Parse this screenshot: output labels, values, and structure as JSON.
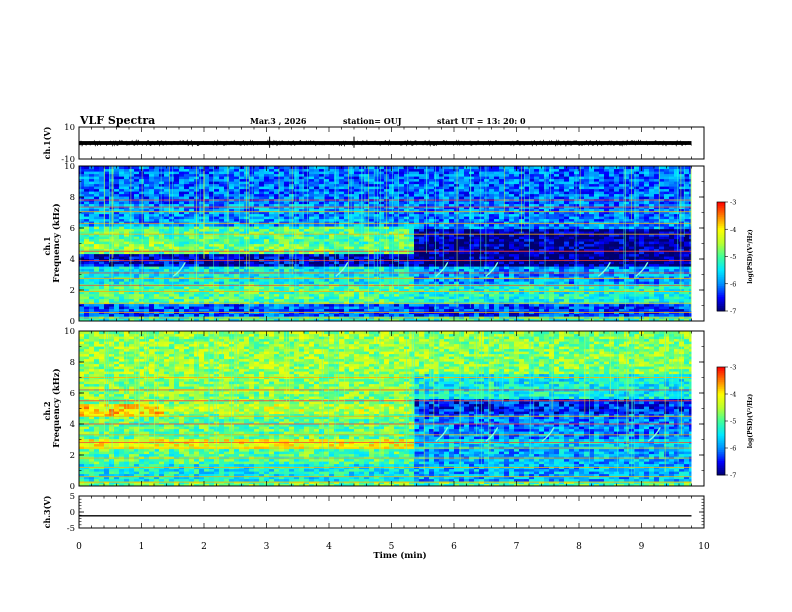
{
  "header": {
    "title": "VLF Spectra",
    "date": "Mar.3  , 2026",
    "station": "station= OUJ",
    "start": "start  UT  =   13: 20: 0"
  },
  "colors": {
    "cmap": [
      "#00006e",
      "#0000ff",
      "#0090ff",
      "#00e8ff",
      "#40ff9a",
      "#b8ff30",
      "#ffff00",
      "#ff8000",
      "#ff0000",
      "#ffffff"
    ]
  },
  "chart_data": [
    {
      "type": "line",
      "panel": "ch1_waveform",
      "ylabel": "ch.1(V)",
      "ylim": [
        -10,
        10
      ],
      "yticks": [
        "10",
        "-10"
      ],
      "xlim": [
        0,
        10
      ],
      "series": [
        {
          "level": 0,
          "amplitude": 1.5,
          "spikes": [
            3.05,
            4.4
          ]
        }
      ]
    },
    {
      "type": "heatmap",
      "panel": "ch1_spectrogram",
      "ylabel": "Frequency (kHz)",
      "channel_label": "ch.1",
      "ylim": [
        0,
        10
      ],
      "yticks": [
        "0",
        "2",
        "4",
        "6",
        "8",
        "10"
      ],
      "xlim": [
        0,
        10
      ],
      "colorbar": {
        "label": "log(PSD)(V²/Hz)",
        "range": [
          -7,
          -3
        ],
        "ticks": [
          "-3",
          "-4",
          "-5",
          "-6",
          "-7"
        ]
      },
      "transition_time_min": 5.4,
      "bands_before": [
        {
          "f": [
            0.0,
            0.3
          ],
          "level": -5.2
        },
        {
          "f": [
            0.3,
            1.2
          ],
          "level": -6.2
        },
        {
          "f": [
            1.2,
            2.4
          ],
          "level": -5.0
        },
        {
          "f": [
            2.4,
            3.6
          ],
          "level": -5.4
        },
        {
          "f": [
            3.6,
            4.4
          ],
          "level": -6.6
        },
        {
          "f": [
            4.4,
            5.0
          ],
          "level": -4.8
        },
        {
          "f": [
            5.0,
            6.2
          ],
          "level": -5.0
        },
        {
          "f": [
            6.2,
            7.6
          ],
          "level": -5.9
        },
        {
          "f": [
            7.6,
            10.0
          ],
          "level": -6.1
        }
      ],
      "bands_after": [
        {
          "f": [
            0.0,
            0.3
          ],
          "level": -5.2
        },
        {
          "f": [
            0.3,
            1.2
          ],
          "level": -6.3
        },
        {
          "f": [
            1.2,
            2.4
          ],
          "level": -5.3
        },
        {
          "f": [
            2.4,
            3.6
          ],
          "level": -5.9
        },
        {
          "f": [
            3.6,
            4.4
          ],
          "level": -6.9
        },
        {
          "f": [
            4.4,
            6.0
          ],
          "level": -6.8
        },
        {
          "f": [
            6.0,
            7.6
          ],
          "level": -6.0
        },
        {
          "f": [
            7.6,
            10.0
          ],
          "level": -6.1
        }
      ],
      "strong_band_segment": {
        "t": [
          0,
          1.35
        ],
        "f": [
          4.6,
          5.2
        ],
        "level": -4.6
      },
      "lines_khz": [
        0.2,
        0.55,
        1.15,
        1.9,
        2.3,
        2.75,
        3.1,
        3.9,
        4.5,
        5.6,
        6.3,
        7.05,
        7.35,
        7.8
      ],
      "whistler_times_min": [
        1.7,
        4.3,
        5.9,
        6.7,
        8.5,
        9.1
      ]
    },
    {
      "type": "heatmap",
      "panel": "ch2_spectrogram",
      "ylabel": "Frequency (kHz)",
      "channel_label": "ch.2",
      "ylim": [
        0,
        10
      ],
      "yticks": [
        "0",
        "2",
        "4",
        "6",
        "8",
        "10"
      ],
      "xlim": [
        0,
        10
      ],
      "colorbar": {
        "label": "log(PSD)(V²/Hz)",
        "range": [
          -7,
          -3
        ],
        "ticks": [
          "-3",
          "-4",
          "-5",
          "-6",
          "-7"
        ]
      },
      "transition_time_min": 5.4,
      "bands_before": [
        {
          "f": [
            0.0,
            0.4
          ],
          "level": -4.8
        },
        {
          "f": [
            0.4,
            1.4
          ],
          "level": -5.4
        },
        {
          "f": [
            1.4,
            2.4
          ],
          "level": -5.0
        },
        {
          "f": [
            2.4,
            3.0
          ],
          "level": -4.2
        },
        {
          "f": [
            3.0,
            4.6
          ],
          "level": -4.9
        },
        {
          "f": [
            4.6,
            5.4
          ],
          "level": -4.4
        },
        {
          "f": [
            5.4,
            7.2
          ],
          "level": -4.7
        },
        {
          "f": [
            7.2,
            10.0
          ],
          "level": -4.6
        }
      ],
      "bands_after": [
        {
          "f": [
            0.0,
            0.4
          ],
          "level": -5.0
        },
        {
          "f": [
            0.4,
            1.4
          ],
          "level": -5.8
        },
        {
          "f": [
            1.4,
            2.4
          ],
          "level": -5.8
        },
        {
          "f": [
            2.4,
            3.0
          ],
          "level": -5.6
        },
        {
          "f": [
            3.0,
            4.6
          ],
          "level": -6.0
        },
        {
          "f": [
            4.6,
            5.6
          ],
          "level": -6.4
        },
        {
          "f": [
            5.6,
            7.2
          ],
          "level": -5.4
        },
        {
          "f": [
            7.2,
            10.0
          ],
          "level": -4.7
        }
      ],
      "strong_band_segment": {
        "t": [
          0,
          1.35
        ],
        "f": [
          4.5,
          5.3
        ],
        "level": -3.9
      },
      "lines_khz": [
        0.25,
        0.6,
        1.2,
        1.8,
        2.45,
        2.8,
        3.3,
        4.0,
        4.5,
        5.5,
        6.2,
        7.0
      ],
      "whistler_times_min": [
        5.9,
        6.7,
        7.6,
        9.3
      ]
    },
    {
      "type": "line",
      "panel": "ch3_waveform",
      "ylabel": "ch.3(V)",
      "ylim": [
        -5,
        5
      ],
      "yticks": [
        "5",
        "0",
        "-5"
      ],
      "xlim": [
        0,
        10
      ],
      "series": [
        {
          "level": -1.2,
          "amplitude": 0
        }
      ]
    }
  ],
  "xaxis": {
    "label": "Time (min)",
    "ticks": [
      "0",
      "1",
      "2",
      "3",
      "4",
      "5",
      "6",
      "7",
      "8",
      "9",
      "10"
    ]
  }
}
